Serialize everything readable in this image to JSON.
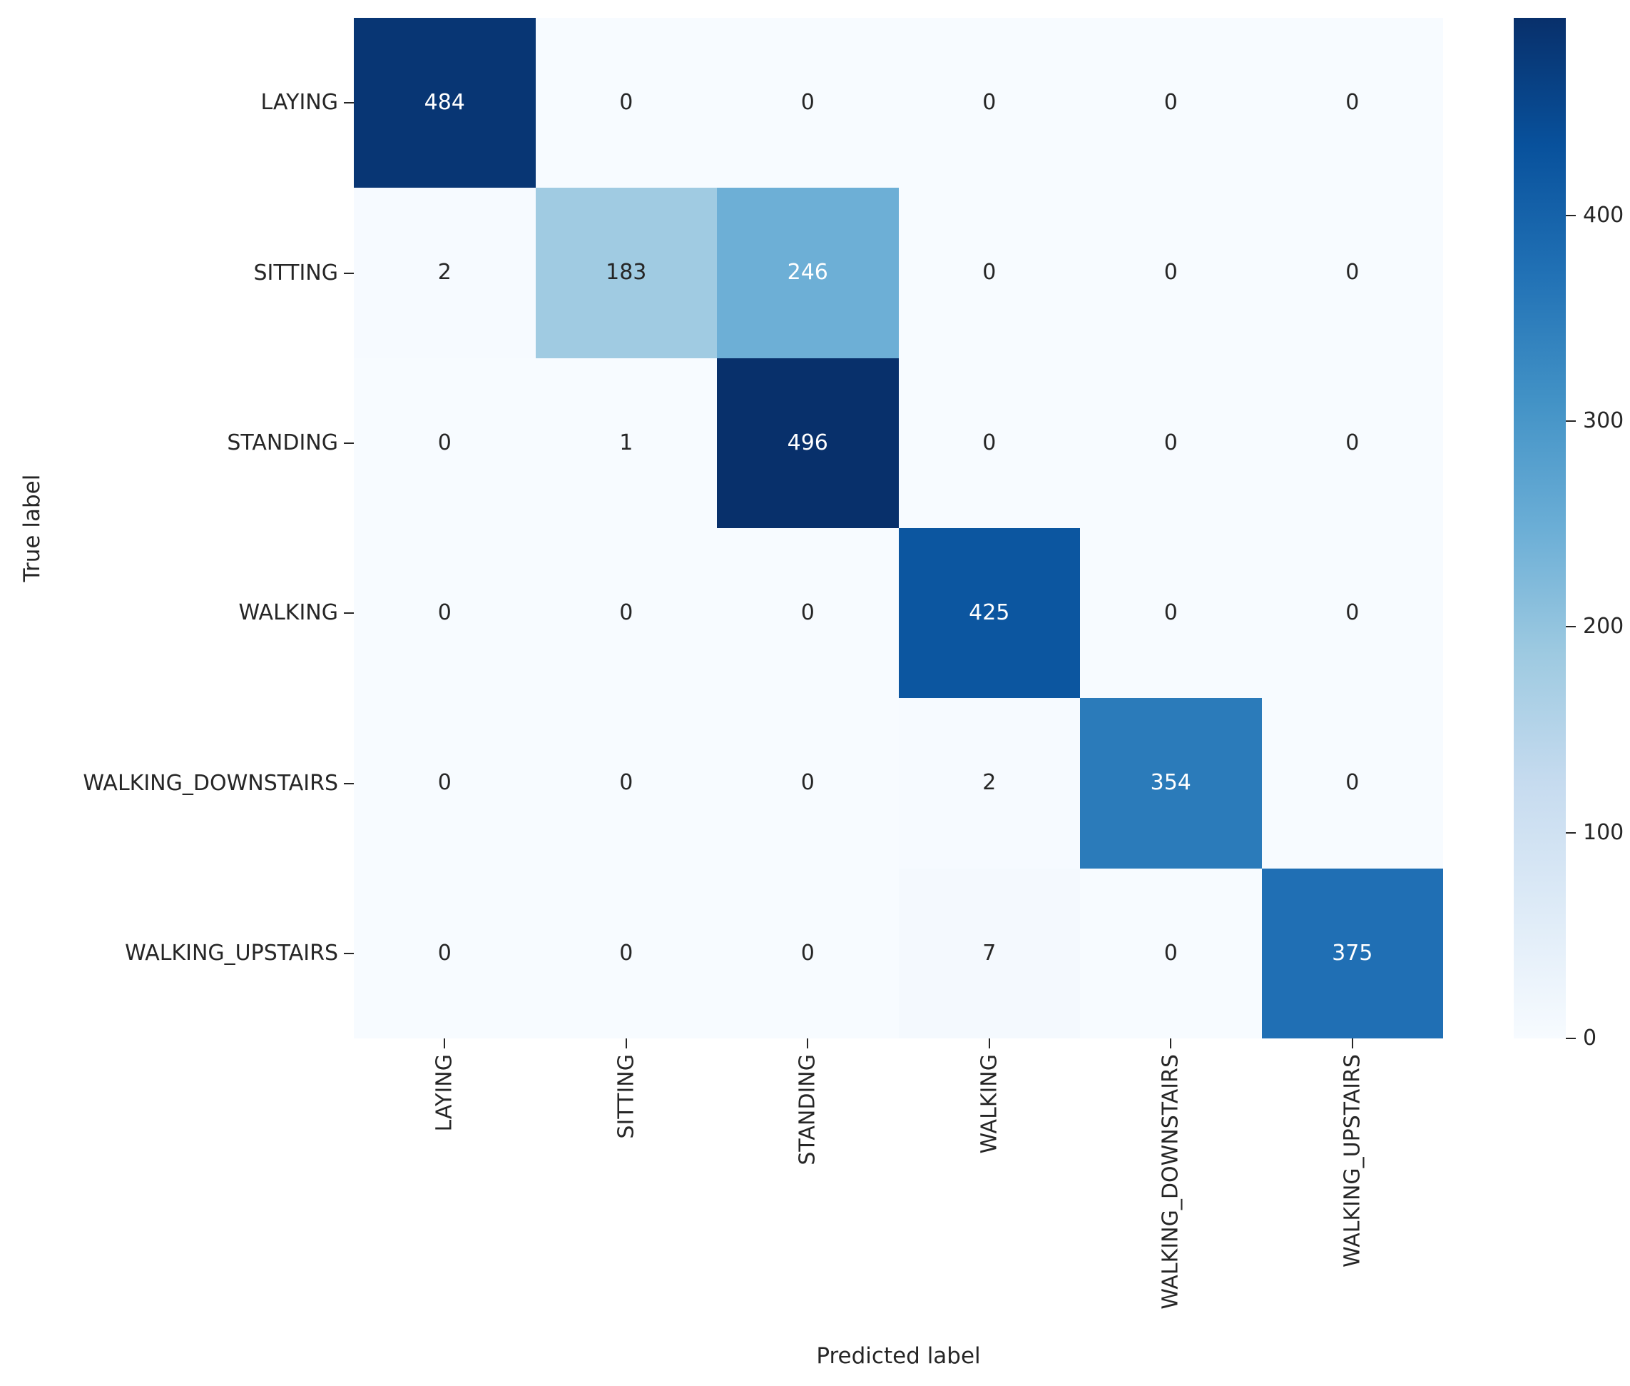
{
  "figure": {
    "background": "#ffffff",
    "text_color": "#262626"
  },
  "chart_data": {
    "type": "heatmap",
    "title": "",
    "xlabel": "Predicted label",
    "ylabel": "True label",
    "categories": [
      "LAYING",
      "SITTING",
      "STANDING",
      "WALKING",
      "WALKING_DOWNSTAIRS",
      "WALKING_UPSTAIRS"
    ],
    "rows": [
      [
        484,
        0,
        0,
        0,
        0,
        0
      ],
      [
        2,
        183,
        246,
        0,
        0,
        0
      ],
      [
        0,
        1,
        496,
        0,
        0,
        0
      ],
      [
        0,
        0,
        0,
        425,
        0,
        0
      ],
      [
        0,
        0,
        0,
        2,
        354,
        0
      ],
      [
        0,
        0,
        0,
        7,
        0,
        375
      ]
    ],
    "vmin": 0,
    "vmax": 496,
    "grid": false,
    "legend_position": "right-colorbar",
    "colormap": {
      "name": "Blues",
      "stops": [
        "#f7fbff",
        "#deebf7",
        "#c6dbef",
        "#9ecae1",
        "#6baed6",
        "#4292c6",
        "#2171b5",
        "#08519c",
        "#08306b"
      ]
    },
    "colorbar": {
      "ticks": [
        0,
        100,
        200,
        300,
        400
      ]
    },
    "annotation_colors": {
      "light_text": "#ffffff",
      "dark_text": "#262626"
    }
  }
}
